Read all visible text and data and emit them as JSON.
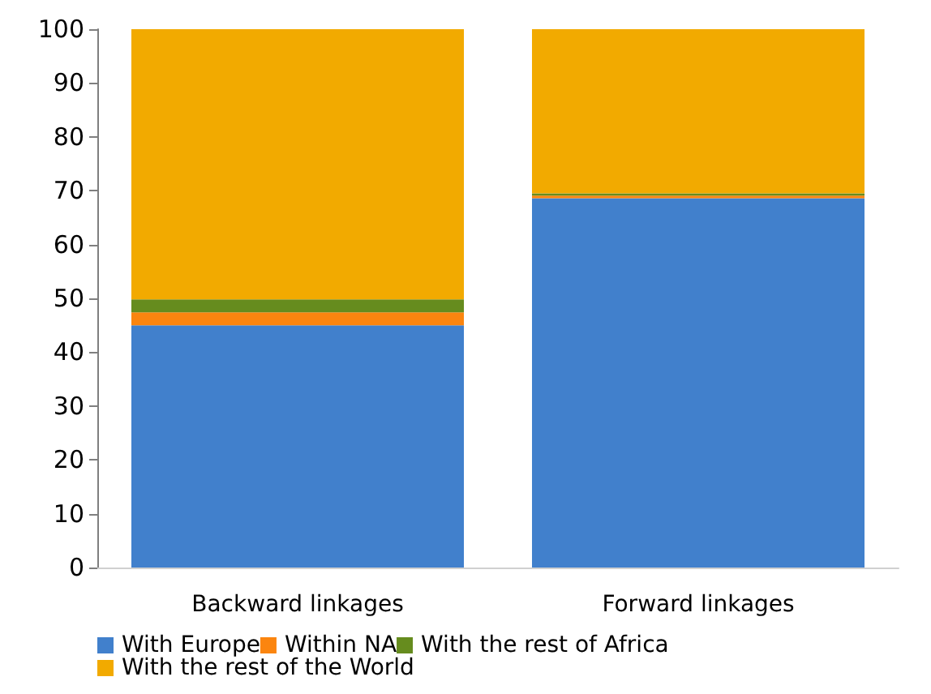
{
  "chart_data": {
    "type": "bar",
    "stacked": true,
    "categories": [
      "Backward linkages",
      "Forward linkages"
    ],
    "series": [
      {
        "name": "With Europe",
        "color": "#4180cc",
        "values": [
          45,
          68.6
        ]
      },
      {
        "name": "Within NA",
        "color": "#fb850f",
        "values": [
          2.4,
          0.5
        ]
      },
      {
        "name": "With the rest of Africa",
        "color": "#668c1e",
        "values": [
          2.4,
          0.4
        ]
      },
      {
        "name": "With the rest of the World",
        "color": "#f2aa00",
        "values": [
          50.2,
          30.5
        ]
      }
    ],
    "ylim": [
      0,
      100
    ],
    "yticks": [
      0,
      10,
      20,
      30,
      40,
      50,
      60,
      70,
      80,
      90,
      100
    ],
    "grid": false,
    "legend": "bottom"
  }
}
